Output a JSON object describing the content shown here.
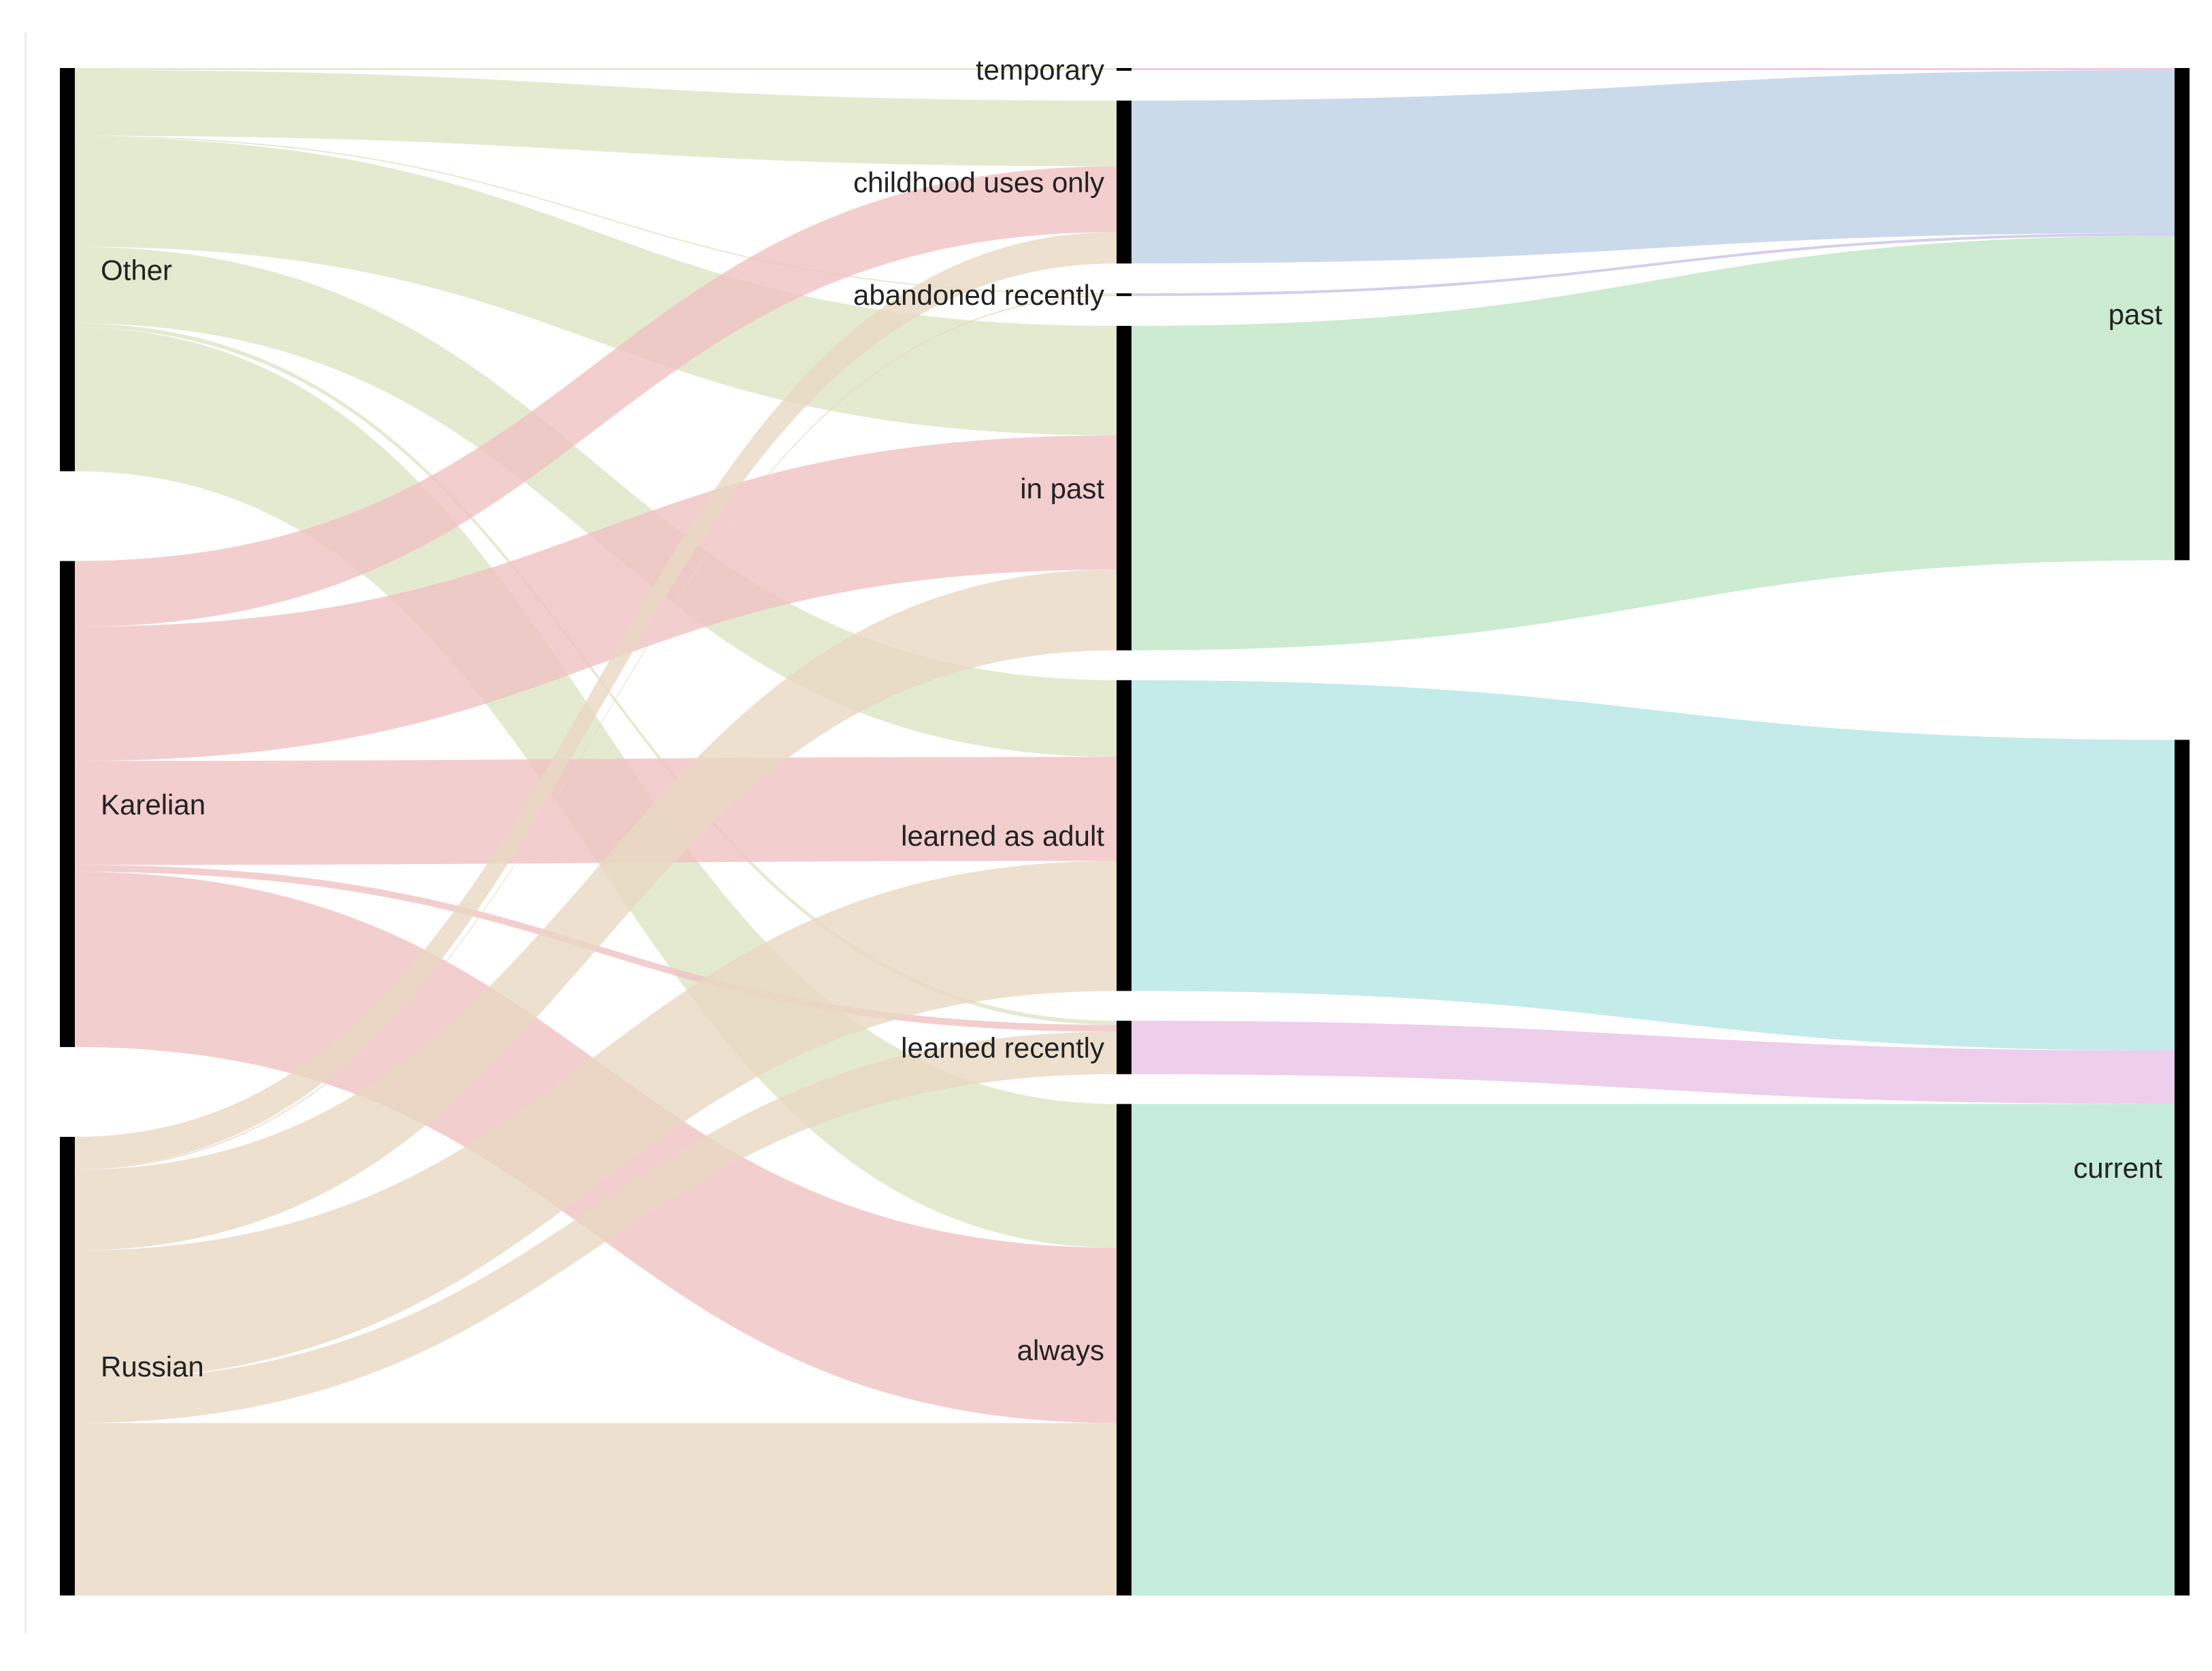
{
  "diagram": {
    "type": "sankey",
    "columns": [
      {
        "label_side": "right",
        "nodes": [
          {
            "id": "other",
            "label": "Other"
          },
          {
            "id": "karelian",
            "label": "Karelian"
          },
          {
            "id": "russian",
            "label": "Russian"
          }
        ]
      },
      {
        "label_side": "left",
        "nodes": [
          {
            "id": "temporary",
            "label": "temporary"
          },
          {
            "id": "childhood",
            "label": "childhood uses only"
          },
          {
            "id": "abandoned",
            "label": "abandoned recently"
          },
          {
            "id": "inpast",
            "label": "in past"
          },
          {
            "id": "adult",
            "label": "learned as adult"
          },
          {
            "id": "recently",
            "label": "learned recently"
          },
          {
            "id": "always",
            "label": "always"
          }
        ]
      },
      {
        "label_side": "left",
        "nodes": [
          {
            "id": "past",
            "label": "past"
          },
          {
            "id": "current",
            "label": "current"
          }
        ]
      }
    ],
    "links": [
      {
        "source": "other",
        "target": "temporary",
        "value": 3
      },
      {
        "source": "other",
        "target": "childhood",
        "value": 96
      },
      {
        "source": "other",
        "target": "abandoned",
        "value": 2
      },
      {
        "source": "other",
        "target": "inpast",
        "value": 160
      },
      {
        "source": "other",
        "target": "adult",
        "value": 112
      },
      {
        "source": "other",
        "target": "recently",
        "value": 6
      },
      {
        "source": "other",
        "target": "always",
        "value": 210
      },
      {
        "source": "karelian",
        "target": "childhood",
        "value": 96
      },
      {
        "source": "karelian",
        "target": "inpast",
        "value": 196
      },
      {
        "source": "karelian",
        "target": "adult",
        "value": 152
      },
      {
        "source": "karelian",
        "target": "recently",
        "value": 10
      },
      {
        "source": "karelian",
        "target": "always",
        "value": 256
      },
      {
        "source": "russian",
        "target": "childhood",
        "value": 46
      },
      {
        "source": "russian",
        "target": "abandoned",
        "value": 2
      },
      {
        "source": "russian",
        "target": "inpast",
        "value": 118
      },
      {
        "source": "russian",
        "target": "adult",
        "value": 190
      },
      {
        "source": "russian",
        "target": "recently",
        "value": 62
      },
      {
        "source": "russian",
        "target": "always",
        "value": 252
      },
      {
        "source": "temporary",
        "target": "past",
        "value": 3
      },
      {
        "source": "childhood",
        "target": "past",
        "value": 238
      },
      {
        "source": "abandoned",
        "target": "past",
        "value": 4
      },
      {
        "source": "inpast",
        "target": "past",
        "value": 474
      },
      {
        "source": "adult",
        "target": "current",
        "value": 454
      },
      {
        "source": "recently",
        "target": "current",
        "value": 78
      },
      {
        "source": "always",
        "target": "current",
        "value": 718
      }
    ],
    "colors": {
      "other": "#dde5c4",
      "karelian": "#f0c2c3",
      "russian": "#e9d8c3",
      "temporary": "#f2b8d4",
      "childhood": "#bed1e6",
      "abandoned": "#c9c2ea",
      "inpast": "#bfe6c5",
      "adult": "#b4e6e4",
      "recently": "#e8c2e6",
      "always": "#b7e6d3",
      "node_bar": "#000000"
    }
  }
}
